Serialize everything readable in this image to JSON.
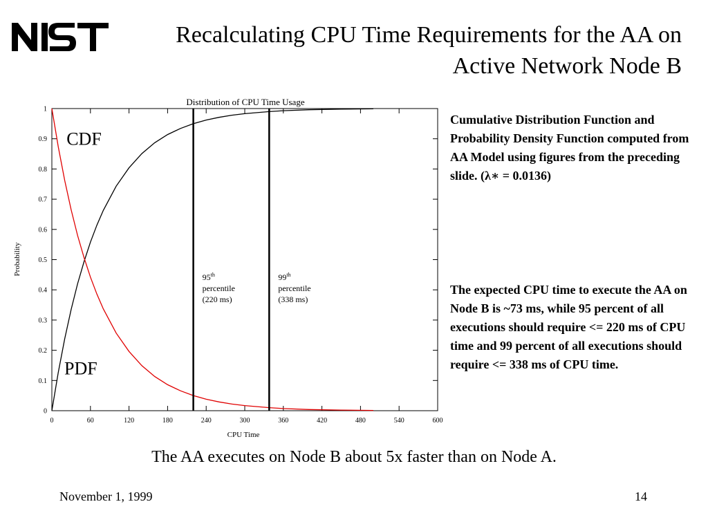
{
  "slide": {
    "logo_text": "NIST",
    "title": "Recalculating CPU Time Requirements for the AA on Active Network Node B",
    "side_text_1": "Cumulative Distribution Function and Probability Density Function computed from AA Model using figures from the preceding slide. (λ∗ = 0.0136)",
    "side_text_2": "The expected CPU time to execute the AA on Node B is  ~73 ms, while 95 percent of all executions should require <= 220 ms of CPU time and 99 percent of all executions should require <= 338 ms of CPU time.",
    "caption": "The AA executes on Node B about 5x faster than on Node A.",
    "footer_date": "November 1, 1999",
    "page_number": "14"
  },
  "chart_data": {
    "type": "line",
    "title": "Distribution of CPU Time Usage",
    "xlabel": "CPU Time",
    "ylabel": "Probability",
    "xlim": [
      0,
      600
    ],
    "ylim": [
      0,
      1
    ],
    "xticks": [
      "0",
      "60",
      "120",
      "180",
      "240",
      "300",
      "360",
      "420",
      "480",
      "540",
      "600"
    ],
    "yticks": [
      "0",
      "0.1",
      "0.2",
      "0.3",
      "0.4",
      "0.5",
      "0.6",
      "0.7",
      "0.8",
      "0.9",
      "1"
    ],
    "grid": false,
    "rate": 0.0136,
    "series": [
      {
        "name": "CDF",
        "color": "#000000",
        "x": [
          0,
          10,
          20,
          30,
          40,
          50,
          60,
          70,
          80,
          100,
          120,
          140,
          160,
          180,
          200,
          220,
          240,
          260,
          280,
          300,
          338,
          360,
          400,
          450,
          500
        ],
        "values": [
          0,
          0.127,
          0.238,
          0.335,
          0.42,
          0.493,
          0.558,
          0.614,
          0.663,
          0.743,
          0.804,
          0.851,
          0.887,
          0.914,
          0.934,
          0.95,
          0.962,
          0.971,
          0.978,
          0.983,
          0.99,
          0.993,
          0.996,
          0.998,
          0.999
        ]
      },
      {
        "name": "PDF",
        "color": "#e00000",
        "x": [
          0,
          10,
          20,
          30,
          40,
          50,
          60,
          70,
          80,
          100,
          120,
          140,
          160,
          180,
          200,
          220,
          240,
          260,
          280,
          300,
          338,
          360,
          400,
          450,
          500
        ],
        "values": [
          1,
          0.873,
          0.762,
          0.665,
          0.58,
          0.507,
          0.442,
          0.386,
          0.337,
          0.257,
          0.196,
          0.149,
          0.113,
          0.086,
          0.066,
          0.05,
          0.038,
          0.029,
          0.022,
          0.017,
          0.01,
          0.007,
          0.004,
          0.002,
          0.001
        ]
      }
    ],
    "vlines": [
      {
        "x": 220,
        "label_sup": "th",
        "label_lines": [
          "95",
          "percentile",
          "(220 ms)"
        ]
      },
      {
        "x": 338,
        "label_sup": "th",
        "label_lines": [
          "99",
          "percentile",
          "(338 ms)"
        ]
      }
    ],
    "annotations": [
      {
        "text": "CDF",
        "x": 50,
        "y": 0.88
      },
      {
        "text": "PDF",
        "x": 45,
        "y": 0.12
      }
    ]
  }
}
